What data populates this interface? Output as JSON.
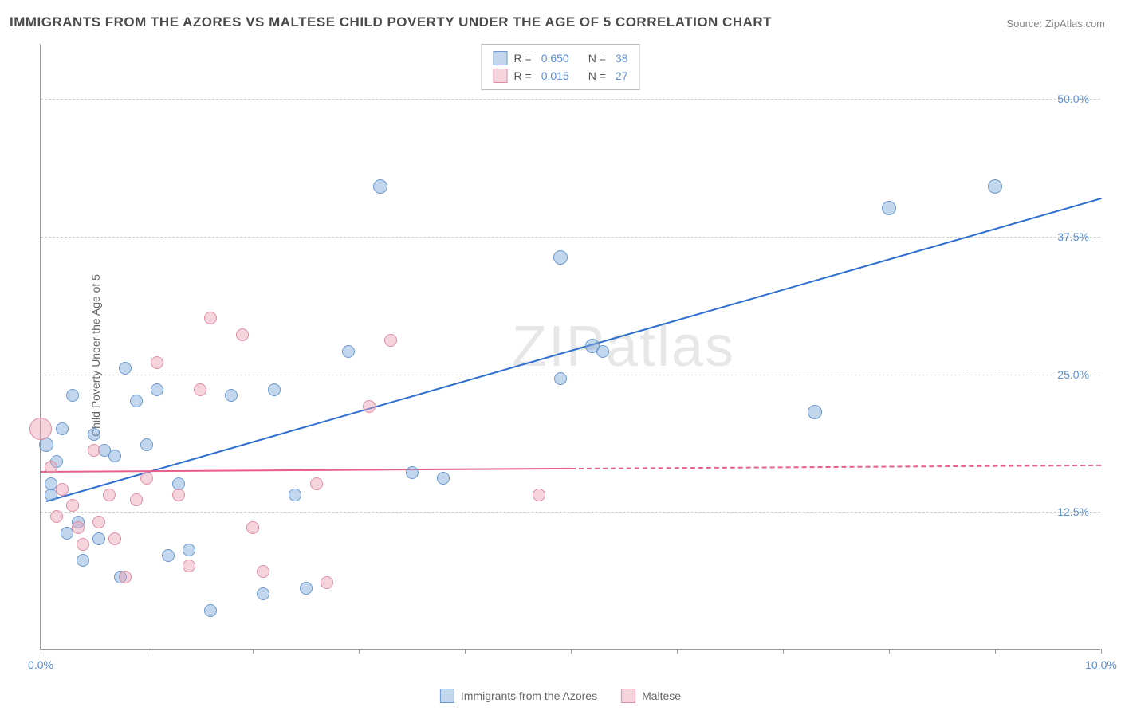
{
  "title": "IMMIGRANTS FROM THE AZORES VS MALTESE CHILD POVERTY UNDER THE AGE OF 5 CORRELATION CHART",
  "source": "Source: ZipAtlas.com",
  "y_axis_label": "Child Poverty Under the Age of 5",
  "watermark": "ZIPatlas",
  "chart": {
    "type": "scatter",
    "xlim": [
      0,
      10
    ],
    "ylim": [
      0,
      55
    ],
    "x_ticks": [
      0,
      1,
      2,
      3,
      4,
      5,
      6,
      7,
      8,
      9,
      10
    ],
    "x_tick_labels": {
      "0": "0.0%",
      "10": "10.0%"
    },
    "y_gridlines": [
      12.5,
      25.0,
      37.5,
      50.0
    ],
    "y_tick_labels": [
      "12.5%",
      "25.0%",
      "37.5%",
      "50.0%"
    ],
    "background_color": "#ffffff",
    "grid_color": "#cccccc",
    "axis_color": "#999999",
    "tick_label_color": "#5b8fd6"
  },
  "series": [
    {
      "name": "Immigrants from the Azores",
      "fill": "rgba(120,165,216,0.45)",
      "stroke": "#6a99d0",
      "trend_color": "#2e6fd1",
      "r_value": "0.650",
      "n_value": "38",
      "trend": {
        "x1": 0.05,
        "y1": 13.5,
        "x2": 10.0,
        "y2": 41.0,
        "solid_until_x": 10.0
      },
      "points": [
        {
          "x": 0.05,
          "y": 18.5,
          "r": 9
        },
        {
          "x": 0.1,
          "y": 14.0,
          "r": 8
        },
        {
          "x": 0.1,
          "y": 15.0,
          "r": 8
        },
        {
          "x": 0.15,
          "y": 17.0,
          "r": 8
        },
        {
          "x": 0.2,
          "y": 20.0,
          "r": 8
        },
        {
          "x": 0.25,
          "y": 10.5,
          "r": 8
        },
        {
          "x": 0.3,
          "y": 23.0,
          "r": 8
        },
        {
          "x": 0.35,
          "y": 11.5,
          "r": 8
        },
        {
          "x": 0.4,
          "y": 8.0,
          "r": 8
        },
        {
          "x": 0.5,
          "y": 19.5,
          "r": 8
        },
        {
          "x": 0.55,
          "y": 10.0,
          "r": 8
        },
        {
          "x": 0.6,
          "y": 18.0,
          "r": 8
        },
        {
          "x": 0.7,
          "y": 17.5,
          "r": 8
        },
        {
          "x": 0.75,
          "y": 6.5,
          "r": 8
        },
        {
          "x": 0.8,
          "y": 25.5,
          "r": 8
        },
        {
          "x": 0.9,
          "y": 22.5,
          "r": 8
        },
        {
          "x": 1.0,
          "y": 18.5,
          "r": 8
        },
        {
          "x": 1.1,
          "y": 23.5,
          "r": 8
        },
        {
          "x": 1.2,
          "y": 8.5,
          "r": 8
        },
        {
          "x": 1.3,
          "y": 15.0,
          "r": 8
        },
        {
          "x": 1.4,
          "y": 9.0,
          "r": 8
        },
        {
          "x": 1.6,
          "y": 3.5,
          "r": 8
        },
        {
          "x": 1.8,
          "y": 23.0,
          "r": 8
        },
        {
          "x": 2.1,
          "y": 5.0,
          "r": 8
        },
        {
          "x": 2.2,
          "y": 23.5,
          "r": 8
        },
        {
          "x": 2.4,
          "y": 14.0,
          "r": 8
        },
        {
          "x": 2.5,
          "y": 5.5,
          "r": 8
        },
        {
          "x": 2.9,
          "y": 27.0,
          "r": 8
        },
        {
          "x": 3.2,
          "y": 42.0,
          "r": 9
        },
        {
          "x": 3.5,
          "y": 16.0,
          "r": 8
        },
        {
          "x": 3.8,
          "y": 15.5,
          "r": 8
        },
        {
          "x": 4.9,
          "y": 24.5,
          "r": 8
        },
        {
          "x": 4.9,
          "y": 35.5,
          "r": 9
        },
        {
          "x": 5.2,
          "y": 27.5,
          "r": 9
        },
        {
          "x": 5.3,
          "y": 27.0,
          "r": 8
        },
        {
          "x": 7.3,
          "y": 21.5,
          "r": 9
        },
        {
          "x": 8.0,
          "y": 40.0,
          "r": 9
        },
        {
          "x": 9.0,
          "y": 42.0,
          "r": 9
        }
      ]
    },
    {
      "name": "Maltese",
      "fill": "rgba(236,160,180,0.45)",
      "stroke": "#e08ca2",
      "trend_color": "#e85f8a",
      "r_value": "0.015",
      "n_value": "27",
      "trend": {
        "x1": 0.0,
        "y1": 16.2,
        "x2": 10.0,
        "y2": 16.8,
        "solid_until_x": 5.0
      },
      "points": [
        {
          "x": 0.0,
          "y": 20.0,
          "r": 14
        },
        {
          "x": 0.1,
          "y": 16.5,
          "r": 8
        },
        {
          "x": 0.15,
          "y": 12.0,
          "r": 8
        },
        {
          "x": 0.2,
          "y": 14.5,
          "r": 8
        },
        {
          "x": 0.3,
          "y": 13.0,
          "r": 8
        },
        {
          "x": 0.35,
          "y": 11.0,
          "r": 8
        },
        {
          "x": 0.4,
          "y": 9.5,
          "r": 8
        },
        {
          "x": 0.5,
          "y": 18.0,
          "r": 8
        },
        {
          "x": 0.55,
          "y": 11.5,
          "r": 8
        },
        {
          "x": 0.65,
          "y": 14.0,
          "r": 8
        },
        {
          "x": 0.7,
          "y": 10.0,
          "r": 8
        },
        {
          "x": 0.8,
          "y": 6.5,
          "r": 8
        },
        {
          "x": 0.9,
          "y": 13.5,
          "r": 8
        },
        {
          "x": 1.0,
          "y": 15.5,
          "r": 8
        },
        {
          "x": 1.1,
          "y": 26.0,
          "r": 8
        },
        {
          "x": 1.3,
          "y": 14.0,
          "r": 8
        },
        {
          "x": 1.4,
          "y": 7.5,
          "r": 8
        },
        {
          "x": 1.5,
          "y": 23.5,
          "r": 8
        },
        {
          "x": 1.6,
          "y": 30.0,
          "r": 8
        },
        {
          "x": 1.9,
          "y": 28.5,
          "r": 8
        },
        {
          "x": 2.0,
          "y": 11.0,
          "r": 8
        },
        {
          "x": 2.1,
          "y": 7.0,
          "r": 8
        },
        {
          "x": 2.6,
          "y": 15.0,
          "r": 8
        },
        {
          "x": 2.7,
          "y": 6.0,
          "r": 8
        },
        {
          "x": 3.1,
          "y": 22.0,
          "r": 8
        },
        {
          "x": 3.3,
          "y": 28.0,
          "r": 8
        },
        {
          "x": 4.7,
          "y": 14.0,
          "r": 8
        }
      ]
    }
  ],
  "legend_bottom": [
    {
      "label": "Immigrants from the Azores",
      "fill": "rgba(120,165,216,0.45)",
      "stroke": "#6a99d0"
    },
    {
      "label": "Maltese",
      "fill": "rgba(236,160,180,0.45)",
      "stroke": "#e08ca2"
    }
  ],
  "legend_top_labels": {
    "r": "R =",
    "n": "N ="
  }
}
